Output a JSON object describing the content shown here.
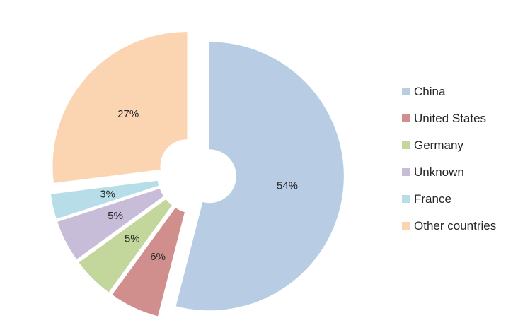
{
  "chart_data": {
    "type": "pie",
    "subtype": "exploded-donut",
    "title": "",
    "categories": [
      "China",
      "United States",
      "Germany",
      "Unknown",
      "France",
      "Other countries"
    ],
    "values": [
      54,
      6,
      5,
      5,
      3,
      27
    ],
    "data_labels": [
      "54%",
      "6%",
      "5%",
      "5%",
      "3%",
      "27%"
    ],
    "colors": [
      "#B8CCE4",
      "#D08E8C",
      "#C3D69B",
      "#C7BDD8",
      "#B7DEE8",
      "#FBD4B2"
    ],
    "legend_position": "right",
    "start_angle_deg": 0,
    "clockwise": true,
    "donut_hole_ratio": 0.2,
    "exploded": true,
    "background_color": "#FFFFFF",
    "label_color": "#262626"
  }
}
